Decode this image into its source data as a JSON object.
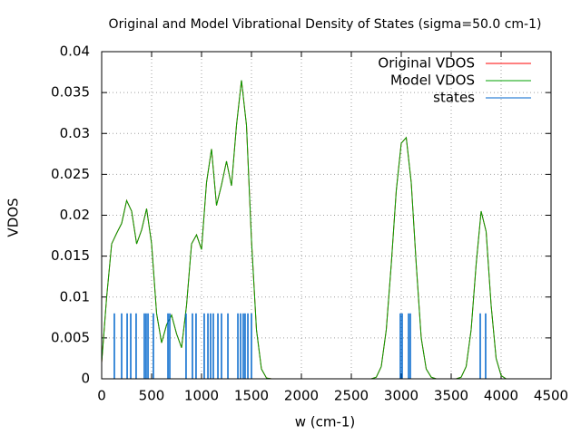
{
  "chart_data": {
    "type": "line",
    "title": "Original and Model Vibrational Density of States (sigma=50.0 cm-1)",
    "x_label": "w (cm-1)",
    "y_label": "VDOS",
    "xlim": [
      0,
      4500
    ],
    "ylim": [
      0,
      0.04
    ],
    "xticks": [
      0,
      500,
      1000,
      1500,
      2000,
      2500,
      3000,
      3500,
      4000,
      4500
    ],
    "yticks": [
      0,
      0.005,
      0.01,
      0.015,
      0.02,
      0.025,
      0.03,
      0.035,
      0.04
    ],
    "grid": true,
    "legend": "top-right",
    "series": [
      {
        "name": "Original VDOS",
        "color": "#ff0000",
        "style": "line",
        "x": [
          0,
          50,
          100,
          150,
          200,
          250,
          300,
          350,
          400,
          450,
          500,
          550,
          600,
          650,
          700,
          750,
          800,
          850,
          900,
          950,
          1000,
          1050,
          1100,
          1150,
          1200,
          1250,
          1300,
          1350,
          1400,
          1450,
          1500,
          1550,
          1600,
          1650,
          1700,
          1750,
          1800,
          1850,
          1900,
          1950,
          2000,
          2050,
          2100,
          2150,
          2200,
          2250,
          2300,
          2350,
          2400,
          2450,
          2500,
          2550,
          2600,
          2650,
          2700,
          2750,
          2800,
          2850,
          2900,
          2950,
          3000,
          3050,
          3100,
          3150,
          3200,
          3250,
          3300,
          3350,
          3400,
          3450,
          3500,
          3550,
          3600,
          3650,
          3700,
          3750,
          3800,
          3850,
          3900,
          3950,
          4000,
          4050,
          4100,
          4150,
          4200,
          4250,
          4300,
          4350,
          4400,
          4450,
          4500
        ],
        "values": [
          0.002,
          0.01,
          0.0165,
          0.0178,
          0.019,
          0.0218,
          0.0205,
          0.0165,
          0.0182,
          0.0208,
          0.0165,
          0.008,
          0.0044,
          0.0066,
          0.0078,
          0.0055,
          0.0038,
          0.009,
          0.0165,
          0.0176,
          0.0158,
          0.024,
          0.0281,
          0.0212,
          0.0237,
          0.0266,
          0.0236,
          0.031,
          0.0365,
          0.031,
          0.017,
          0.006,
          0.0012,
          0.0001,
          0,
          0,
          0,
          0,
          0,
          0,
          0,
          0,
          0,
          0,
          0,
          0,
          0,
          0,
          0,
          0,
          0,
          0,
          0,
          0,
          0,
          0.0002,
          0.0015,
          0.006,
          0.014,
          0.023,
          0.0288,
          0.0295,
          0.024,
          0.014,
          0.005,
          0.0012,
          0.0002,
          0,
          0,
          0,
          0,
          0,
          0.0002,
          0.0015,
          0.006,
          0.014,
          0.0205,
          0.018,
          0.009,
          0.0025,
          0.0004,
          0,
          0,
          0,
          0,
          0,
          0,
          0,
          0,
          0,
          0
        ]
      },
      {
        "name": "Model VDOS",
        "color": "#00a000",
        "style": "line",
        "x": [
          0,
          50,
          100,
          150,
          200,
          250,
          300,
          350,
          400,
          450,
          500,
          550,
          600,
          650,
          700,
          750,
          800,
          850,
          900,
          950,
          1000,
          1050,
          1100,
          1150,
          1200,
          1250,
          1300,
          1350,
          1400,
          1450,
          1500,
          1550,
          1600,
          1650,
          1700,
          1750,
          1800,
          1850,
          1900,
          1950,
          2000,
          2050,
          2100,
          2150,
          2200,
          2250,
          2300,
          2350,
          2400,
          2450,
          2500,
          2550,
          2600,
          2650,
          2700,
          2750,
          2800,
          2850,
          2900,
          2950,
          3000,
          3050,
          3100,
          3150,
          3200,
          3250,
          3300,
          3350,
          3400,
          3450,
          3500,
          3550,
          3600,
          3650,
          3700,
          3750,
          3800,
          3850,
          3900,
          3950,
          4000,
          4050,
          4100,
          4150,
          4200,
          4250,
          4300,
          4350,
          4400,
          4450,
          4500
        ],
        "values": [
          0.002,
          0.01,
          0.0165,
          0.0178,
          0.019,
          0.0218,
          0.0205,
          0.0165,
          0.0182,
          0.0208,
          0.0165,
          0.008,
          0.0044,
          0.0066,
          0.0078,
          0.0055,
          0.0038,
          0.009,
          0.0165,
          0.0176,
          0.0158,
          0.024,
          0.0281,
          0.0212,
          0.0237,
          0.0266,
          0.0236,
          0.031,
          0.0365,
          0.031,
          0.017,
          0.006,
          0.0012,
          0.0001,
          0,
          0,
          0,
          0,
          0,
          0,
          0,
          0,
          0,
          0,
          0,
          0,
          0,
          0,
          0,
          0,
          0,
          0,
          0,
          0,
          0,
          0.0002,
          0.0015,
          0.006,
          0.014,
          0.023,
          0.0288,
          0.0295,
          0.024,
          0.014,
          0.005,
          0.0012,
          0.0002,
          0,
          0,
          0,
          0,
          0,
          0.0002,
          0.0015,
          0.006,
          0.014,
          0.0205,
          0.018,
          0.009,
          0.0025,
          0.0004,
          0,
          0,
          0,
          0,
          0,
          0,
          0,
          0,
          0,
          0
        ]
      },
      {
        "name": "states",
        "color": "#0066cc",
        "style": "impulses",
        "x": [
          127,
          200,
          255,
          291,
          345,
          427,
          445,
          464,
          518,
          664,
          682,
          845,
          909,
          945,
          1027,
          1064,
          1091,
          1118,
          1164,
          1200,
          1264,
          1364,
          1391,
          1418,
          1436,
          1464,
          1500,
          2991,
          3009,
          3073,
          3091,
          3791,
          3845
        ],
        "values": [
          0.008,
          0.008,
          0.008,
          0.008,
          0.008,
          0.008,
          0.008,
          0.008,
          0.008,
          0.008,
          0.008,
          0.008,
          0.008,
          0.008,
          0.008,
          0.008,
          0.008,
          0.008,
          0.008,
          0.008,
          0.008,
          0.008,
          0.008,
          0.008,
          0.008,
          0.008,
          0.008,
          0.008,
          0.008,
          0.008,
          0.008,
          0.008,
          0.008
        ]
      }
    ]
  }
}
